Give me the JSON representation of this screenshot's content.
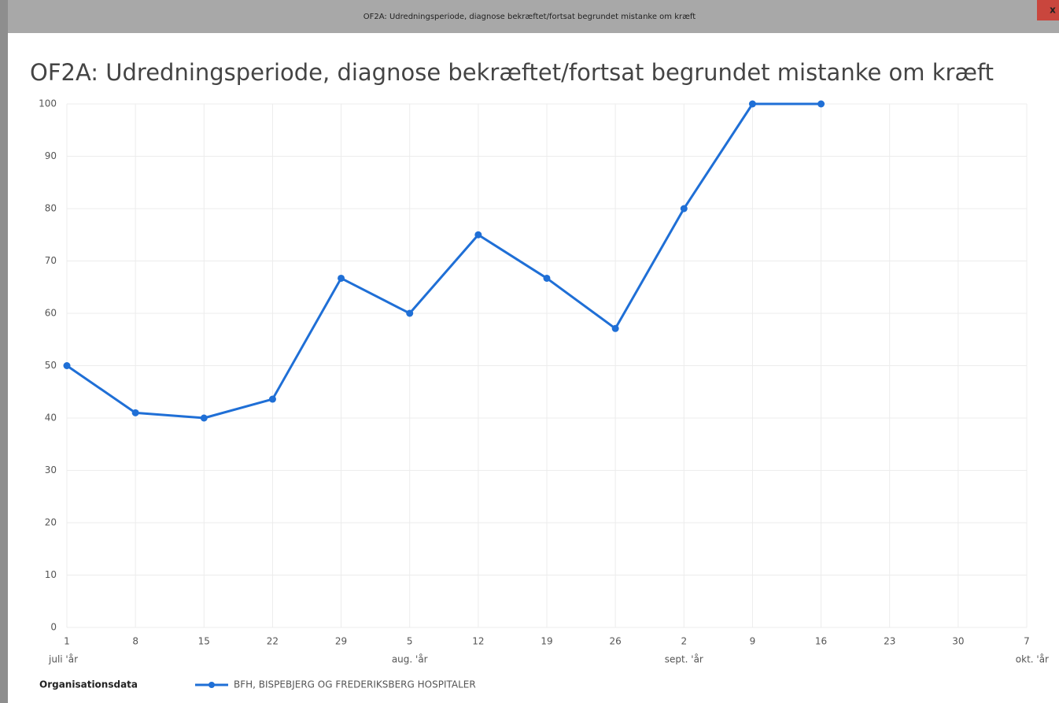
{
  "window": {
    "title": "OF2A: Udredningsperiode, diagnose bekræftet/fortsat begrundet mistanke om kræft",
    "close": "x"
  },
  "chart_data": {
    "type": "line",
    "title": "OF2A: Udredningsperiode, diagnose bekræftet/fortsat begrundet mistanke om kræft",
    "categories": [
      "1",
      "8",
      "15",
      "22",
      "29",
      "5",
      "12",
      "19",
      "26",
      "2",
      "9",
      "16",
      "23",
      "30",
      "7"
    ],
    "x_sublabels": [
      "juli 'år",
      null,
      null,
      null,
      null,
      "aug. 'år",
      null,
      null,
      null,
      "sept. 'år",
      null,
      null,
      null,
      null,
      "okt. 'år"
    ],
    "series": [
      {
        "name": "BFH, BISPEBJERG OG FREDERIKSBERG HOSPITALER",
        "color": "#1f6fd6",
        "values": [
          50,
          41,
          40,
          43.6,
          66.7,
          60,
          75,
          66.7,
          57.1,
          80,
          100,
          100,
          null,
          null,
          null
        ]
      }
    ],
    "legend_title": "Organisationsdata",
    "ylim": [
      0,
      100
    ],
    "yticks": [
      0,
      10,
      20,
      30,
      40,
      50,
      60,
      70,
      80,
      90,
      100
    ],
    "grid": true
  }
}
